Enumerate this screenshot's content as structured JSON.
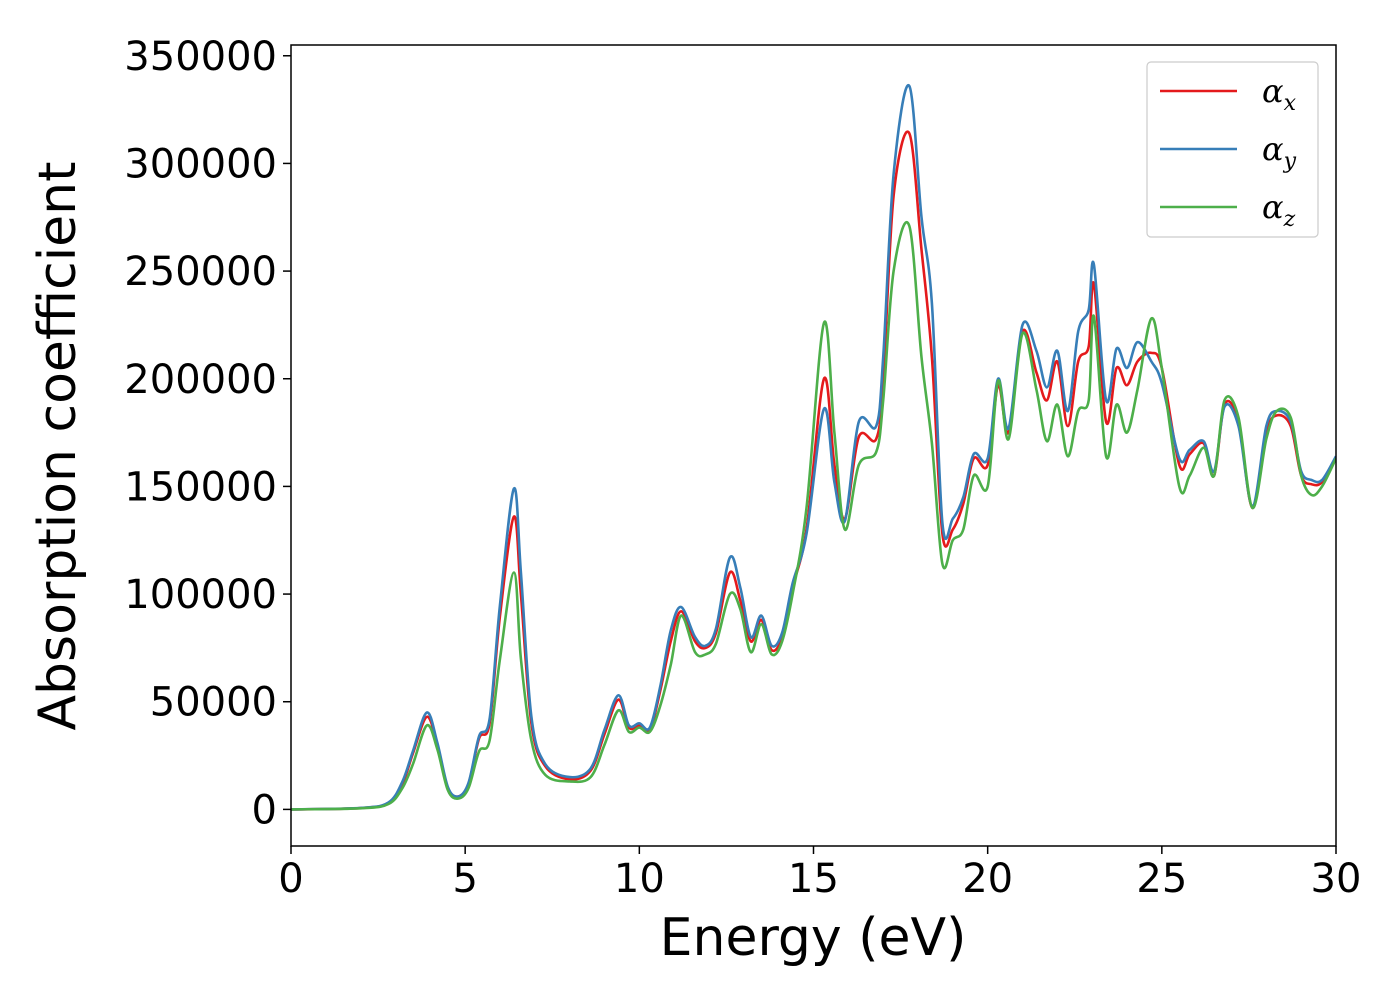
{
  "chart_data": {
    "type": "line",
    "title": "",
    "xlabel": "Energy (eV)",
    "ylabel": "Absorption coefficient",
    "xlim": [
      0,
      30
    ],
    "ylim": [
      -17000,
      355000
    ],
    "xticks": [
      0,
      5,
      10,
      15,
      20,
      25,
      30
    ],
    "yticks": [
      0,
      50000,
      100000,
      150000,
      200000,
      250000,
      300000,
      350000
    ],
    "grid": false,
    "legend_position": "top-right",
    "series": [
      {
        "name": "α_x",
        "name_base": "α",
        "name_sub": "x",
        "color": "#e41a1c",
        "points": [
          [
            0,
            0
          ],
          [
            2,
            600
          ],
          [
            2.8,
            3000
          ],
          [
            3.2,
            12000
          ],
          [
            3.5,
            26000
          ],
          [
            3.9,
            43000
          ],
          [
            4.2,
            30000
          ],
          [
            4.5,
            10000
          ],
          [
            4.8,
            6000
          ],
          [
            5.1,
            12000
          ],
          [
            5.4,
            33000
          ],
          [
            5.7,
            40000
          ],
          [
            6.0,
            90000
          ],
          [
            6.4,
            136000
          ],
          [
            6.6,
            100000
          ],
          [
            6.9,
            40000
          ],
          [
            7.3,
            20000
          ],
          [
            8.0,
            14000
          ],
          [
            8.6,
            18000
          ],
          [
            9.0,
            35000
          ],
          [
            9.4,
            51000
          ],
          [
            9.7,
            38000
          ],
          [
            10.0,
            39000
          ],
          [
            10.3,
            37000
          ],
          [
            10.6,
            55000
          ],
          [
            10.9,
            78000
          ],
          [
            11.2,
            92000
          ],
          [
            11.6,
            78000
          ],
          [
            11.9,
            75000
          ],
          [
            12.2,
            82000
          ],
          [
            12.6,
            110000
          ],
          [
            12.9,
            97000
          ],
          [
            13.2,
            78000
          ],
          [
            13.5,
            88000
          ],
          [
            13.8,
            74000
          ],
          [
            14.1,
            80000
          ],
          [
            14.4,
            103000
          ],
          [
            14.8,
            130000
          ],
          [
            15.3,
            200000
          ],
          [
            15.6,
            160000
          ],
          [
            15.9,
            135000
          ],
          [
            16.3,
            173000
          ],
          [
            16.8,
            172000
          ],
          [
            17.0,
            200000
          ],
          [
            17.3,
            285000
          ],
          [
            17.75,
            314000
          ],
          [
            18.1,
            260000
          ],
          [
            18.4,
            210000
          ],
          [
            18.7,
            128000
          ],
          [
            19.0,
            130000
          ],
          [
            19.3,
            142000
          ],
          [
            19.6,
            163000
          ],
          [
            20.0,
            160000
          ],
          [
            20.3,
            197000
          ],
          [
            20.6,
            175000
          ],
          [
            21.0,
            222000
          ],
          [
            21.4,
            203000
          ],
          [
            21.7,
            190000
          ],
          [
            22.0,
            208000
          ],
          [
            22.3,
            178000
          ],
          [
            22.6,
            208000
          ],
          [
            22.9,
            215000
          ],
          [
            23.05,
            244000
          ],
          [
            23.4,
            180000
          ],
          [
            23.7,
            205000
          ],
          [
            24.0,
            197000
          ],
          [
            24.3,
            208000
          ],
          [
            24.7,
            212000
          ],
          [
            25.0,
            205000
          ],
          [
            25.5,
            160000
          ],
          [
            25.8,
            165000
          ],
          [
            26.2,
            170000
          ],
          [
            26.5,
            155000
          ],
          [
            26.8,
            188000
          ],
          [
            27.2,
            180000
          ],
          [
            27.6,
            140000
          ],
          [
            28.0,
            175000
          ],
          [
            28.3,
            183000
          ],
          [
            28.7,
            178000
          ],
          [
            29.0,
            155000
          ],
          [
            29.3,
            151000
          ],
          [
            29.6,
            152000
          ],
          [
            30.0,
            163000
          ]
        ]
      },
      {
        "name": "α_y",
        "name_base": "α",
        "name_sub": "y",
        "color": "#377eb8",
        "points": [
          [
            0,
            0
          ],
          [
            2,
            700
          ],
          [
            2.8,
            3200
          ],
          [
            3.2,
            13000
          ],
          [
            3.5,
            27000
          ],
          [
            3.9,
            45000
          ],
          [
            4.2,
            31000
          ],
          [
            4.5,
            10500
          ],
          [
            4.8,
            6000
          ],
          [
            5.1,
            12500
          ],
          [
            5.4,
            34000
          ],
          [
            5.7,
            42000
          ],
          [
            6.0,
            95000
          ],
          [
            6.4,
            149000
          ],
          [
            6.6,
            110000
          ],
          [
            6.9,
            43000
          ],
          [
            7.3,
            21000
          ],
          [
            8.0,
            15000
          ],
          [
            8.6,
            19000
          ],
          [
            9.0,
            37000
          ],
          [
            9.4,
            53000
          ],
          [
            9.7,
            39000
          ],
          [
            10.0,
            40000
          ],
          [
            10.3,
            38000
          ],
          [
            10.6,
            57000
          ],
          [
            10.9,
            83000
          ],
          [
            11.2,
            94000
          ],
          [
            11.6,
            80000
          ],
          [
            11.9,
            76000
          ],
          [
            12.2,
            84000
          ],
          [
            12.6,
            117000
          ],
          [
            12.9,
            103000
          ],
          [
            13.2,
            80000
          ],
          [
            13.5,
            90000
          ],
          [
            13.8,
            76000
          ],
          [
            14.1,
            82000
          ],
          [
            14.4,
            105000
          ],
          [
            14.8,
            128000
          ],
          [
            15.3,
            186000
          ],
          [
            15.6,
            152000
          ],
          [
            15.9,
            134000
          ],
          [
            16.3,
            180000
          ],
          [
            16.8,
            178000
          ],
          [
            17.0,
            210000
          ],
          [
            17.3,
            295000
          ],
          [
            17.75,
            336000
          ],
          [
            18.1,
            275000
          ],
          [
            18.4,
            235000
          ],
          [
            18.7,
            133000
          ],
          [
            19.0,
            135000
          ],
          [
            19.3,
            145000
          ],
          [
            19.6,
            165000
          ],
          [
            20.0,
            163000
          ],
          [
            20.3,
            200000
          ],
          [
            20.6,
            177000
          ],
          [
            21.0,
            225000
          ],
          [
            21.4,
            213000
          ],
          [
            21.7,
            196000
          ],
          [
            22.0,
            213000
          ],
          [
            22.3,
            185000
          ],
          [
            22.6,
            222000
          ],
          [
            22.9,
            232000
          ],
          [
            23.05,
            253000
          ],
          [
            23.4,
            190000
          ],
          [
            23.7,
            214000
          ],
          [
            24.0,
            205000
          ],
          [
            24.3,
            217000
          ],
          [
            24.7,
            208000
          ],
          [
            25.0,
            198000
          ],
          [
            25.5,
            163000
          ],
          [
            25.8,
            167000
          ],
          [
            26.2,
            171000
          ],
          [
            26.5,
            157000
          ],
          [
            26.8,
            187000
          ],
          [
            27.2,
            178000
          ],
          [
            27.6,
            141000
          ],
          [
            28.0,
            178000
          ],
          [
            28.3,
            185000
          ],
          [
            28.7,
            180000
          ],
          [
            29.0,
            157000
          ],
          [
            29.3,
            153000
          ],
          [
            29.6,
            153000
          ],
          [
            30.0,
            164000
          ]
        ]
      },
      {
        "name": "α_z",
        "name_base": "α",
        "name_sub": "z",
        "color": "#4daf4a",
        "points": [
          [
            0,
            0
          ],
          [
            2,
            500
          ],
          [
            2.8,
            2500
          ],
          [
            3.2,
            10000
          ],
          [
            3.5,
            21000
          ],
          [
            3.9,
            39000
          ],
          [
            4.2,
            28000
          ],
          [
            4.5,
            9000
          ],
          [
            4.8,
            5000
          ],
          [
            5.1,
            10000
          ],
          [
            5.4,
            27000
          ],
          [
            5.7,
            32000
          ],
          [
            6.0,
            70000
          ],
          [
            6.4,
            110000
          ],
          [
            6.6,
            70000
          ],
          [
            6.9,
            32000
          ],
          [
            7.3,
            16000
          ],
          [
            8.0,
            13000
          ],
          [
            8.6,
            15000
          ],
          [
            9.0,
            30000
          ],
          [
            9.4,
            46000
          ],
          [
            9.7,
            36000
          ],
          [
            10.0,
            38000
          ],
          [
            10.3,
            36000
          ],
          [
            10.6,
            48000
          ],
          [
            10.9,
            67000
          ],
          [
            11.2,
            90000
          ],
          [
            11.6,
            73000
          ],
          [
            11.9,
            72000
          ],
          [
            12.2,
            77000
          ],
          [
            12.6,
            100000
          ],
          [
            12.9,
            93000
          ],
          [
            13.2,
            73000
          ],
          [
            13.5,
            86000
          ],
          [
            13.8,
            72000
          ],
          [
            14.1,
            78000
          ],
          [
            14.4,
            100000
          ],
          [
            14.8,
            140000
          ],
          [
            15.3,
            226000
          ],
          [
            15.6,
            175000
          ],
          [
            15.9,
            130000
          ],
          [
            16.3,
            160000
          ],
          [
            16.8,
            166000
          ],
          [
            17.0,
            190000
          ],
          [
            17.3,
            250000
          ],
          [
            17.75,
            271000
          ],
          [
            18.1,
            210000
          ],
          [
            18.4,
            170000
          ],
          [
            18.7,
            114000
          ],
          [
            19.0,
            125000
          ],
          [
            19.3,
            130000
          ],
          [
            19.6,
            155000
          ],
          [
            20.0,
            150000
          ],
          [
            20.3,
            199000
          ],
          [
            20.6,
            172000
          ],
          [
            21.0,
            221000
          ],
          [
            21.4,
            195000
          ],
          [
            21.7,
            171000
          ],
          [
            22.0,
            188000
          ],
          [
            22.3,
            164000
          ],
          [
            22.6,
            185000
          ],
          [
            22.9,
            190000
          ],
          [
            23.05,
            229000
          ],
          [
            23.4,
            164000
          ],
          [
            23.7,
            188000
          ],
          [
            24.0,
            175000
          ],
          [
            24.3,
            195000
          ],
          [
            24.7,
            228000
          ],
          [
            25.0,
            205000
          ],
          [
            25.5,
            150000
          ],
          [
            25.8,
            155000
          ],
          [
            26.2,
            168000
          ],
          [
            26.5,
            155000
          ],
          [
            26.8,
            190000
          ],
          [
            27.2,
            182000
          ],
          [
            27.6,
            140000
          ],
          [
            28.0,
            172000
          ],
          [
            28.3,
            185000
          ],
          [
            28.7,
            182000
          ],
          [
            29.0,
            155000
          ],
          [
            29.3,
            146000
          ],
          [
            29.6,
            150000
          ],
          [
            30.0,
            163000
          ]
        ]
      }
    ]
  }
}
